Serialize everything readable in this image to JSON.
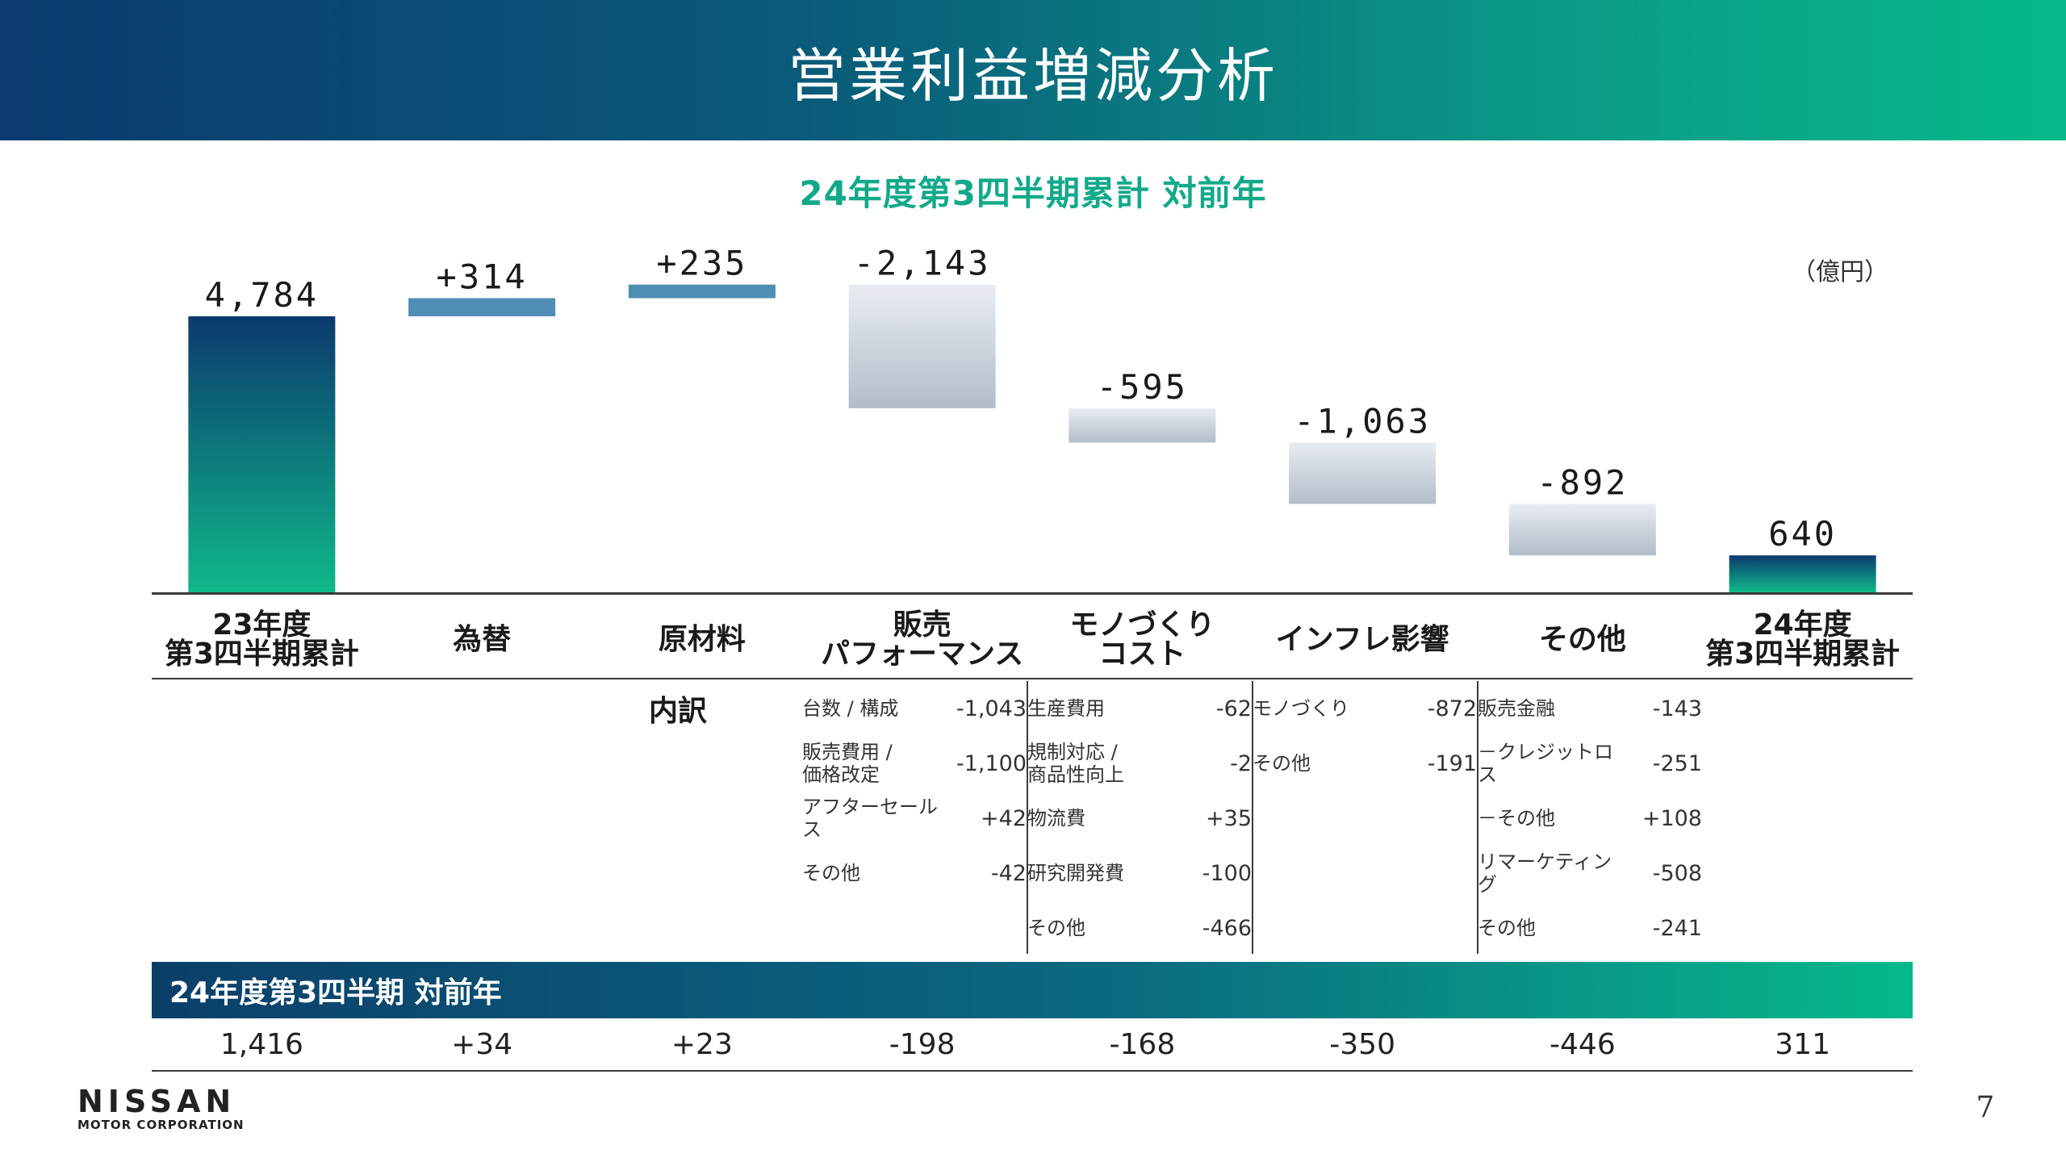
{
  "title": "営業利益増減分析",
  "subtitle": "24年度第3四半期累計 対前年",
  "unit": "（億円）",
  "chart_data": {
    "type": "bar",
    "subtype": "waterfall",
    "title": "24年度第3四半期累計 対前年",
    "unit": "億円",
    "categories": [
      "23年度\n第3四半期累計",
      "為替",
      "原材料",
      "販売\nパフォーマンス",
      "モノづくり\nコスト",
      "インフレ影響",
      "その他",
      "24年度\n第3四半期累計"
    ],
    "values": [
      4784,
      314,
      235,
      -2143,
      -595,
      -1063,
      -892,
      640
    ],
    "data_labels": [
      "4,784",
      "+314",
      "+235",
      "-2,143",
      "-595",
      "-1,063",
      "-892",
      "640"
    ],
    "kinds": [
      "total",
      "increase",
      "increase",
      "decrease",
      "decrease",
      "decrease",
      "decrease",
      "total"
    ],
    "ylim": [
      0,
      5400
    ],
    "grid": false,
    "colors": {
      "total_top": "#0b3a6e",
      "total_bottom": "#0fb98a",
      "increase": "#4f8db5",
      "decrease_top": "#e9edf2",
      "decrease_bottom": "#b3bcc9"
    }
  },
  "breakdown": {
    "title": "内訳",
    "columns": [
      {
        "rows": [
          {
            "label": "台数 / 構成",
            "value": "-1,043"
          },
          {
            "label": "販売費用 /\n価格改定",
            "value": "-1,100"
          },
          {
            "label": "アフターセールス",
            "value": "+42"
          },
          {
            "label": "その他",
            "value": "-42"
          }
        ]
      },
      {
        "rows": [
          {
            "label": "生産費用",
            "value": "-62"
          },
          {
            "label": "規制対応 /\n商品性向上",
            "value": "-2"
          },
          {
            "label": "物流費",
            "value": "+35"
          },
          {
            "label": "研究開発費",
            "value": "-100"
          },
          {
            "label": "その他",
            "value": "-466"
          }
        ]
      },
      {
        "rows": [
          {
            "label": "モノづくり",
            "value": "-872"
          },
          {
            "label": "その他",
            "value": "-191"
          }
        ]
      },
      {
        "rows": [
          {
            "label": "販売金融",
            "value": "-143"
          },
          {
            "label": "－クレジットロス",
            "value": "-251"
          },
          {
            "label": "－その他",
            "value": "+108"
          },
          {
            "label": "リマーケティング",
            "value": "-508"
          },
          {
            "label": "その他",
            "value": "-241"
          }
        ]
      }
    ]
  },
  "q3": {
    "label": "24年度第3四半期 対前年",
    "values": [
      "1,416",
      "+34",
      "+23",
      "-198",
      "-168",
      "-350",
      "-446",
      "311"
    ]
  },
  "logo": {
    "name": "NISSAN",
    "sub": "MOTOR CORPORATION"
  },
  "page_number": "7"
}
